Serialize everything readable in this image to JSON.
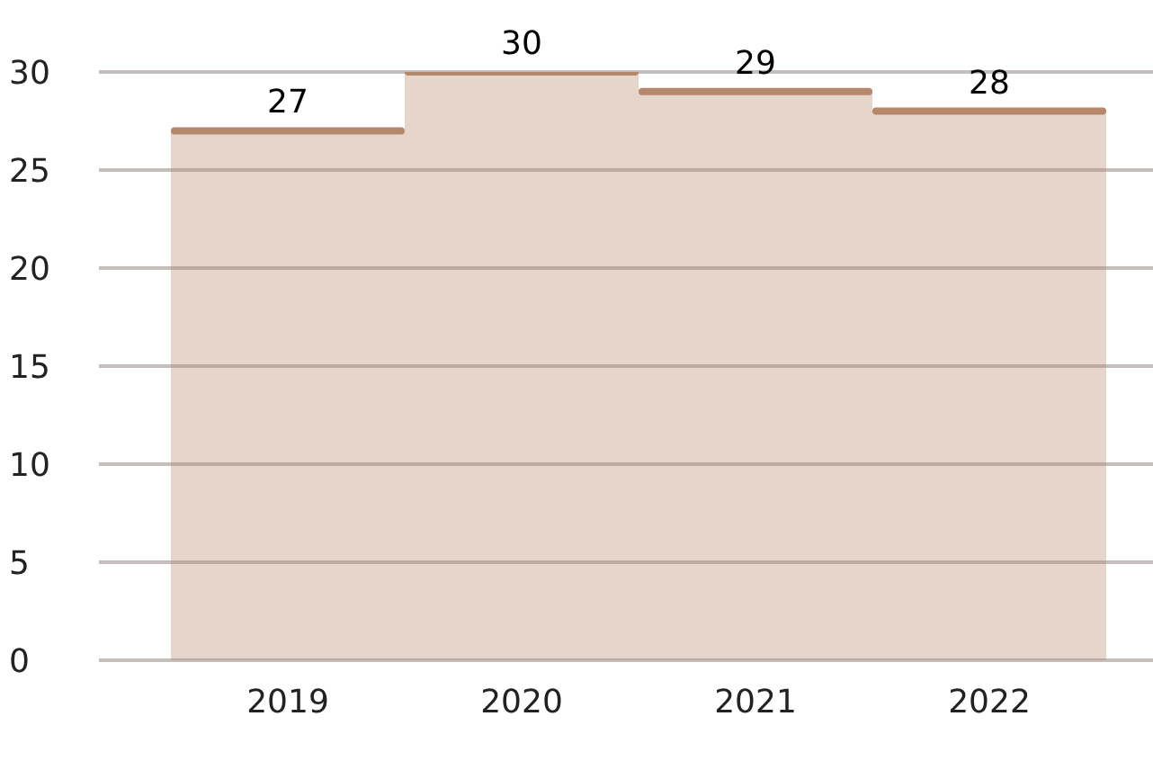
{
  "chart_data": {
    "type": "bar",
    "categories": [
      "2019",
      "2020",
      "2021",
      "2022"
    ],
    "series": [
      {
        "color": "#b5876b",
        "values": [
          27,
          30,
          29,
          28
        ]
      }
    ],
    "ylim": [
      0,
      30
    ],
    "yticks": [
      0,
      5,
      10,
      15,
      20,
      25,
      30
    ],
    "grid": "y",
    "data_labels": true,
    "legend": false
  }
}
